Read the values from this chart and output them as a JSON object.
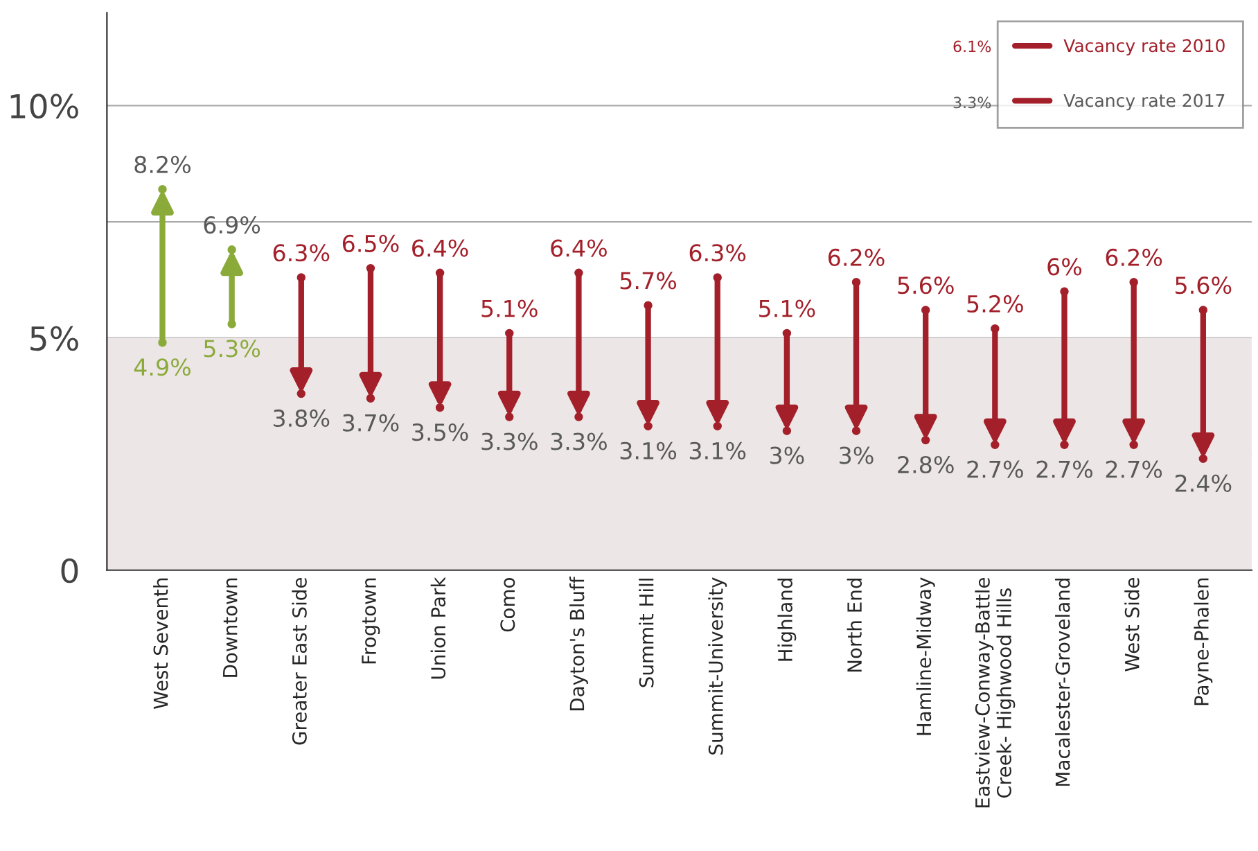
{
  "chart_data": {
    "type": "scatter",
    "categories": [
      "West Seventh",
      "Downtown",
      "Greater East Side",
      "Frogtown",
      "Union Park",
      "Como",
      "Dayton's Bluff",
      "Summit Hill",
      "Summit-University",
      "Highland",
      "North End",
      "Hamline-Midway",
      "Eastview-Conway-Battle\nCreek- Highwood Hills",
      "Macalester-Groveland",
      "West Side",
      "Payne-Phalen"
    ],
    "series": [
      {
        "name": "Vacancy rate 2010",
        "color": "#a3202a",
        "colors": [
          "#8aaa3a",
          "#8aaa3a",
          "#a3202a",
          "#a3202a",
          "#a3202a",
          "#a3202a",
          "#a3202a",
          "#a3202a",
          "#a3202a",
          "#a3202a",
          "#a3202a",
          "#a3202a",
          "#a3202a",
          "#a3202a",
          "#a3202a",
          "#a3202a"
        ],
        "values": [
          4.9,
          5.3,
          6.3,
          6.5,
          6.4,
          5.1,
          6.4,
          5.7,
          6.3,
          5.1,
          6.2,
          5.6,
          5.2,
          6,
          6.2,
          5.6
        ],
        "value_labels": [
          "4.9%",
          "5.3%",
          "6.3%",
          "6.5%",
          "6.4%",
          "5.1%",
          "6.4%",
          "5.7%",
          "6.3%",
          "5.1%",
          "6.2%",
          "5.6%",
          "5.2%",
          "6%",
          "6.2%",
          "5.6%"
        ]
      },
      {
        "name": "Vacancy rate 2017",
        "color": "#a3202a",
        "colors": [
          "#8aaa3a",
          "#8aaa3a",
          "#a3202a",
          "#a3202a",
          "#a3202a",
          "#a3202a",
          "#a3202a",
          "#a3202a",
          "#a3202a",
          "#a3202a",
          "#a3202a",
          "#a3202a",
          "#a3202a",
          "#a3202a",
          "#a3202a",
          "#a3202a"
        ],
        "values": [
          8.2,
          6.9,
          3.8,
          3.7,
          3.5,
          3.3,
          3.3,
          3.1,
          3.1,
          3,
          3,
          2.8,
          2.7,
          2.7,
          2.7,
          2.4
        ],
        "value_labels": [
          "8.2%",
          "6.9%",
          "3.8%",
          "3.7%",
          "3.5%",
          "3.3%",
          "3.3%",
          "3.1%",
          "3.1%",
          "3%",
          "3%",
          "2.8%",
          "2.7%",
          "2.7%",
          "2.7%",
          "2.4%"
        ]
      }
    ],
    "annotations": [
      "6.1%",
      "3.3%"
    ],
    "ylim": [
      0,
      12
    ],
    "yticks": [
      {
        "value": 0,
        "label": "0"
      },
      {
        "value": 2.5,
        "label": null
      },
      {
        "value": 5,
        "label": "5%"
      },
      {
        "value": 7.5,
        "label": null
      },
      {
        "value": 10,
        "label": "10%"
      }
    ],
    "grid": "y",
    "bands": [
      {
        "axis": "y",
        "from": 0,
        "to": 5,
        "color": "#ede6e6"
      }
    ],
    "legend": "top right"
  }
}
